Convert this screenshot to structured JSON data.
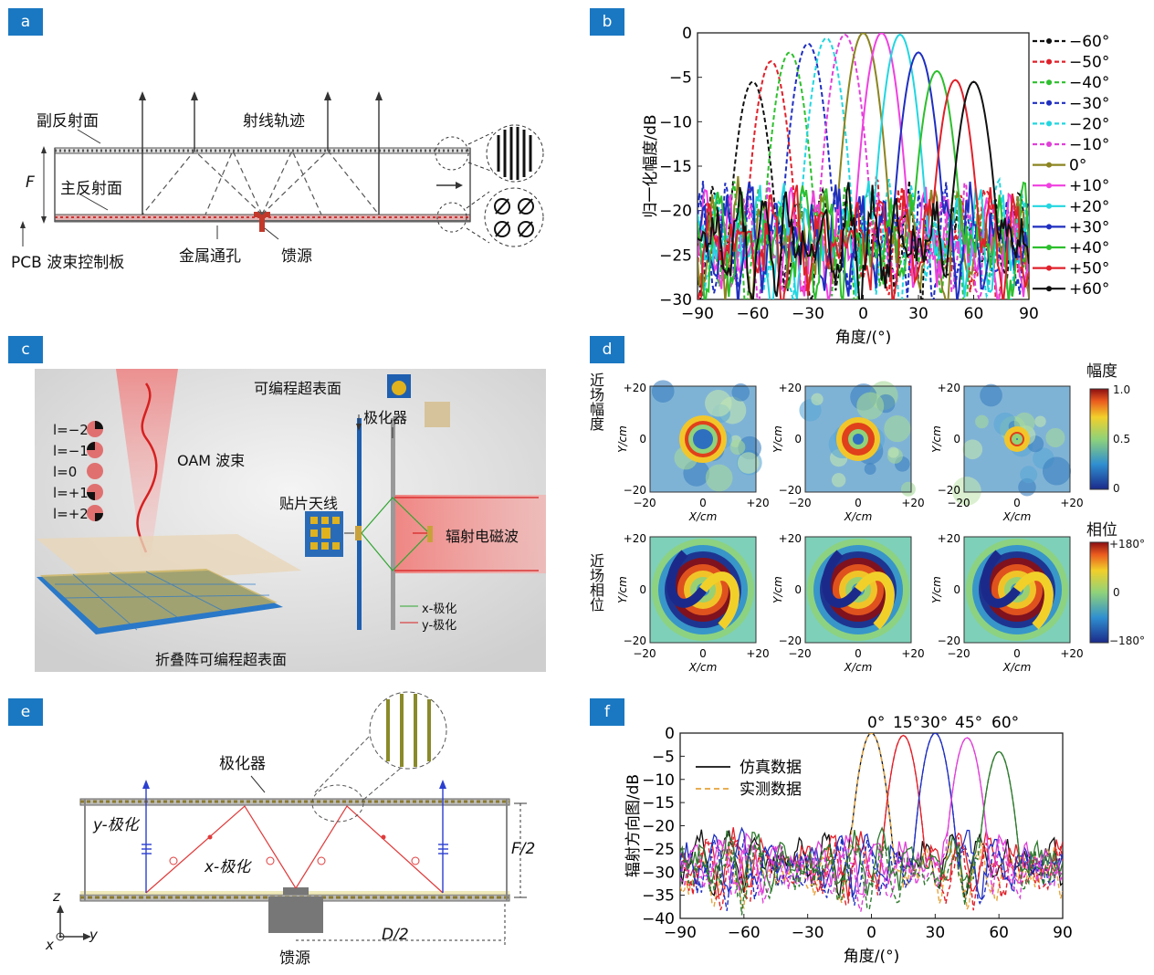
{
  "badges": {
    "a": "a",
    "b": "b",
    "c": "c",
    "d": "d",
    "e": "e",
    "f": "f"
  },
  "panel_a": {
    "sub_reflector": "副反射面",
    "ray_path": "射线轨迹",
    "F": "F",
    "main_reflector": "主反射面",
    "pcb": "PCB 波束控制板",
    "metal_via": "金属通孔",
    "feed": "馈源"
  },
  "panel_c": {
    "oam_beam": "OAM 波束",
    "programmable_surface": "可编程超表面",
    "polarizer": "极化器",
    "patch_antenna": "贴片天线",
    "radiated_wave": "辐射电磁波",
    "folded_surface": "折叠阵可编程超表面",
    "x_pol": "x-极化",
    "y_pol": "y-极化",
    "modes": [
      "l=−2",
      "l=−1",
      "l=0",
      "l=+1",
      "l=+2"
    ]
  },
  "panel_d": {
    "row1": "近场幅度",
    "row2": "近场相位",
    "amp_title": "幅度",
    "phase_title": "相位",
    "amp_ticks": [
      "1.0",
      "0.5",
      "0"
    ],
    "phase_ticks": [
      "+180°",
      "0",
      "−180°"
    ],
    "xlabel": "X/cm",
    "ylabel": "Y/cm",
    "ticks": [
      "−20",
      "0",
      "+20"
    ]
  },
  "panel_e": {
    "polarizer": "极化器",
    "y_pol": "y-极化",
    "x_pol": "x-极化",
    "F2": "F/2",
    "D2": "D/2",
    "feed": "馈源",
    "z": "z",
    "x": "x",
    "y": "y"
  },
  "chart_data": [
    {
      "type": "line",
      "panel": "b",
      "xlabel": "角度/(°)",
      "ylabel": "归一化幅度/dB",
      "xlim": [
        -90,
        90
      ],
      "ylim": [
        -30,
        0
      ],
      "xticks": [
        "−90",
        "−60",
        "−30",
        "0",
        "30",
        "60",
        "90"
      ],
      "yticks": [
        "0",
        "−5",
        "−10",
        "−15",
        "−20",
        "−25",
        "−30"
      ],
      "legend_position": "right",
      "series": [
        {
          "name": "−60°",
          "color": "#111111",
          "dash": true,
          "peak": -60,
          "peak_db": -5.5
        },
        {
          "name": "−50°",
          "color": "#e0202a",
          "dash": true,
          "peak": -50,
          "peak_db": -3.2
        },
        {
          "name": "−40°",
          "color": "#2dbf2d",
          "dash": true,
          "peak": -40,
          "peak_db": -2.2
        },
        {
          "name": "−30°",
          "color": "#1f2fc0",
          "dash": true,
          "peak": -30,
          "peak_db": -1.2
        },
        {
          "name": "−20°",
          "color": "#22d6e0",
          "dash": true,
          "peak": -20,
          "peak_db": -0.6
        },
        {
          "name": "−10°",
          "color": "#e040d8",
          "dash": true,
          "peak": -10,
          "peak_db": -0.2
        },
        {
          "name": "0°",
          "color": "#8b8420",
          "dash": false,
          "peak": 0,
          "peak_db": 0
        },
        {
          "name": "+10°",
          "color": "#f040e0",
          "dash": false,
          "peak": 10,
          "peak_db": 0
        },
        {
          "name": "+20°",
          "color": "#22d6e0",
          "dash": false,
          "peak": 20,
          "peak_db": -0.2
        },
        {
          "name": "+30°",
          "color": "#1f2fc0",
          "dash": false,
          "peak": 30,
          "peak_db": -2.2
        },
        {
          "name": "+40°",
          "color": "#2dbf2d",
          "dash": false,
          "peak": 40,
          "peak_db": -4.3
        },
        {
          "name": "+50°",
          "color": "#e0202a",
          "dash": false,
          "peak": 50,
          "peak_db": -5.3
        },
        {
          "name": "+60°",
          "color": "#111111",
          "dash": false,
          "peak": 60,
          "peak_db": -5.5
        }
      ]
    },
    {
      "type": "line",
      "panel": "f",
      "xlabel": "角度/(°)",
      "ylabel": "辐射方向图/dB",
      "xlim": [
        -90,
        90
      ],
      "ylim": [
        -40,
        0
      ],
      "xticks": [
        "−90",
        "−60",
        "−30",
        "0",
        "30",
        "60",
        "90"
      ],
      "yticks": [
        "0",
        "−5",
        "−10",
        "−15",
        "−20",
        "−25",
        "−30",
        "−35",
        "−40"
      ],
      "peak_labels": [
        "0°",
        "15°30°",
        "45°",
        "60°"
      ],
      "legend": [
        "仿真数据",
        "实测数据"
      ],
      "series": [
        {
          "peak": 0,
          "color": "#111111",
          "peak_db": 0
        },
        {
          "peak": 15,
          "color": "#e0202a",
          "peak_db": -0.5
        },
        {
          "peak": 30,
          "color": "#1f2fc0",
          "peak_db": 0
        },
        {
          "peak": 45,
          "color": "#e040d8",
          "peak_db": -1
        },
        {
          "peak": 60,
          "color": "#2f7a2f",
          "peak_db": -4
        }
      ]
    }
  ]
}
